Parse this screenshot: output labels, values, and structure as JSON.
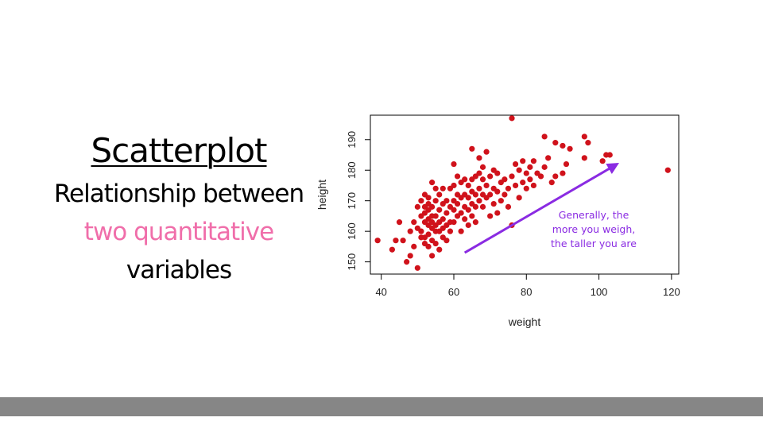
{
  "slide": {
    "title": "Scatterplot",
    "subtitle_line1": "Relationship between",
    "subtitle_line2": "two quantitative",
    "subtitle_line3": "variables",
    "accent_color": "#f06eaa"
  },
  "chart_data": {
    "type": "scatter",
    "title": "",
    "xlabel": "weight",
    "ylabel": "height",
    "xlim": [
      37,
      122
    ],
    "ylim": [
      146,
      198
    ],
    "xticks": [
      "40",
      "60",
      "80",
      "100",
      "120"
    ],
    "yticks": [
      "150",
      "160",
      "170",
      "180",
      "190"
    ],
    "grid": false,
    "point_color": "#d0121b",
    "annotation": {
      "lines": [
        "Generally, the",
        "more you weigh,",
        "the taller you are"
      ],
      "color": "#8a2be2",
      "arrow_from": [
        63,
        153
      ],
      "arrow_to": [
        105,
        182
      ]
    },
    "series": [
      {
        "x": [
          39,
          43,
          44,
          45,
          46,
          47,
          48,
          48,
          49,
          49,
          50,
          50,
          50,
          51,
          51,
          51,
          51,
          52,
          52,
          52,
          52,
          52,
          52,
          53,
          53,
          53,
          53,
          53,
          53,
          53,
          54,
          54,
          54,
          54,
          54,
          54,
          54,
          55,
          55,
          55,
          55,
          55,
          55,
          56,
          56,
          56,
          56,
          56,
          57,
          57,
          57,
          57,
          57,
          58,
          58,
          58,
          58,
          59,
          59,
          59,
          59,
          60,
          60,
          60,
          60,
          60,
          61,
          61,
          61,
          61,
          62,
          62,
          62,
          62,
          63,
          63,
          63,
          63,
          64,
          64,
          64,
          64,
          65,
          65,
          65,
          65,
          65,
          66,
          66,
          66,
          66,
          67,
          67,
          67,
          67,
          68,
          68,
          68,
          68,
          69,
          69,
          69,
          70,
          70,
          70,
          71,
          71,
          71,
          72,
          72,
          72,
          73,
          73,
          74,
          74,
          75,
          75,
          76,
          76,
          76,
          77,
          77,
          78,
          78,
          79,
          79,
          80,
          80,
          81,
          81,
          82,
          82,
          83,
          84,
          85,
          85,
          86,
          87,
          88,
          88,
          90,
          90,
          91,
          92,
          96,
          96,
          97,
          101,
          102,
          103,
          119
        ],
        "y": [
          157,
          154,
          157,
          163,
          157,
          150,
          152,
          160,
          155,
          163,
          148,
          161,
          168,
          158,
          160,
          165,
          170,
          156,
          158,
          163,
          166,
          168,
          172,
          155,
          159,
          162,
          164,
          167,
          169,
          171,
          152,
          157,
          161,
          163,
          165,
          168,
          176,
          156,
          160,
          162,
          165,
          170,
          174,
          154,
          160,
          163,
          167,
          172,
          158,
          161,
          164,
          169,
          174,
          157,
          162,
          166,
          170,
          160,
          163,
          168,
          174,
          163,
          167,
          170,
          175,
          182,
          165,
          169,
          172,
          178,
          160,
          166,
          171,
          176,
          164,
          168,
          172,
          177,
          162,
          167,
          171,
          175,
          165,
          169,
          173,
          177,
          187,
          163,
          168,
          172,
          178,
          170,
          174,
          179,
          184,
          168,
          172,
          177,
          181,
          171,
          175,
          186,
          165,
          172,
          178,
          169,
          174,
          180,
          166,
          173,
          179,
          170,
          176,
          172,
          177,
          168,
          174,
          162,
          178,
          197,
          175,
          182,
          171,
          180,
          176,
          183,
          174,
          179,
          177,
          181,
          175,
          183,
          179,
          178,
          181,
          191,
          184,
          176,
          178,
          189,
          179,
          188,
          182,
          187,
          184,
          191,
          189,
          183,
          185,
          185,
          180
        ]
      }
    ]
  }
}
